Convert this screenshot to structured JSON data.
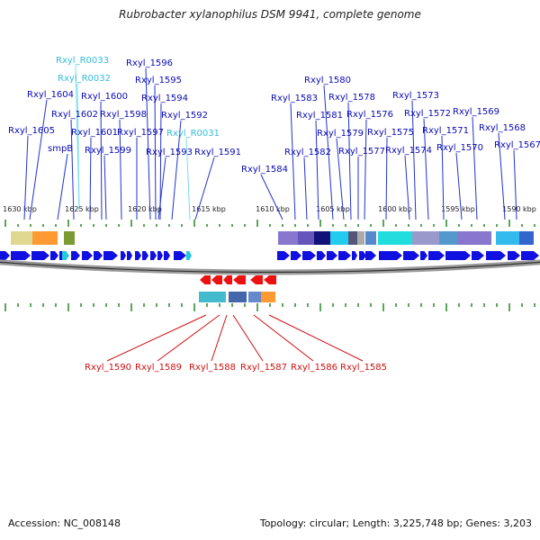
{
  "title": "Rubrobacter xylanophilus DSM 9941, complete genome",
  "footer": {
    "accession": "Accession: NC_008148",
    "summary": "Topology: circular; Length: 3,225,748 bp; Genes: 3,203"
  },
  "colors": {
    "forward_gene": "#1010e0",
    "reverse_gene": "#ee1111",
    "rna_gene": "#22ccdd",
    "forward_label": "#0a0ab4",
    "rna_label": "#33bbdd",
    "reverse_label": "#cc1111",
    "tick": "#228822"
  },
  "axis": {
    "tick_labels": [
      "1630 kbp",
      "1625 kbp",
      "1620 kbp",
      "1615 kbp",
      "1610 kbp",
      "1605 kbp",
      "1600 kbp",
      "1595 kbp",
      "1590 kbp"
    ]
  },
  "top_labels": [
    {
      "text": "Rxyl_R0033",
      "type": "rna"
    },
    {
      "text": "Rxyl_R0032",
      "type": "rna"
    },
    {
      "text": "Rxyl_1596",
      "type": "gene"
    },
    {
      "text": "Rxyl_1595",
      "type": "gene"
    },
    {
      "text": "Rxyl_1604",
      "type": "gene"
    },
    {
      "text": "Rxyl_1600",
      "type": "gene"
    },
    {
      "text": "Rxyl_1594",
      "type": "gene"
    },
    {
      "text": "Rxyl_1602",
      "type": "gene"
    },
    {
      "text": "Rxyl_1598",
      "type": "gene"
    },
    {
      "text": "Rxyl_1592",
      "type": "gene"
    },
    {
      "text": "Rxyl_1605",
      "type": "gene"
    },
    {
      "text": "Rxyl_1601",
      "type": "gene"
    },
    {
      "text": "Rxyl_1597",
      "type": "gene"
    },
    {
      "text": "Rxyl_R0031",
      "type": "rna"
    },
    {
      "text": "smpB",
      "type": "gene"
    },
    {
      "text": "Rxyl_1599",
      "type": "gene"
    },
    {
      "text": "Rxyl_1593",
      "type": "gene"
    },
    {
      "text": "Rxyl_1591",
      "type": "gene"
    },
    {
      "text": "Rxyl_1584",
      "type": "gene"
    },
    {
      "text": "Rxyl_1580",
      "type": "gene"
    },
    {
      "text": "Rxyl_1583",
      "type": "gene"
    },
    {
      "text": "Rxyl_1578",
      "type": "gene"
    },
    {
      "text": "Rxyl_1581",
      "type": "gene"
    },
    {
      "text": "Rxyl_1576",
      "type": "gene"
    },
    {
      "text": "Rxyl_1579",
      "type": "gene"
    },
    {
      "text": "Rxyl_1582",
      "type": "gene"
    },
    {
      "text": "Rxyl_1577",
      "type": "gene"
    },
    {
      "text": "Rxyl_1575",
      "type": "gene"
    },
    {
      "text": "Rxyl_1573",
      "type": "gene"
    },
    {
      "text": "Rxyl_1572",
      "type": "gene"
    },
    {
      "text": "Rxyl_1574",
      "type": "gene"
    },
    {
      "text": "Rxyl_1569",
      "type": "gene"
    },
    {
      "text": "Rxyl_1571",
      "type": "gene"
    },
    {
      "text": "Rxyl_1568",
      "type": "gene"
    },
    {
      "text": "Rxyl_1570",
      "type": "gene"
    },
    {
      "text": "Rxyl_1567",
      "type": "gene"
    }
  ],
  "bottom_labels": [
    {
      "text": "Rxyl_1590"
    },
    {
      "text": "Rxyl_1589"
    },
    {
      "text": "Rxyl_1588"
    },
    {
      "text": "Rxyl_1587"
    },
    {
      "text": "Rxyl_1586"
    },
    {
      "text": "Rxyl_1585"
    }
  ]
}
